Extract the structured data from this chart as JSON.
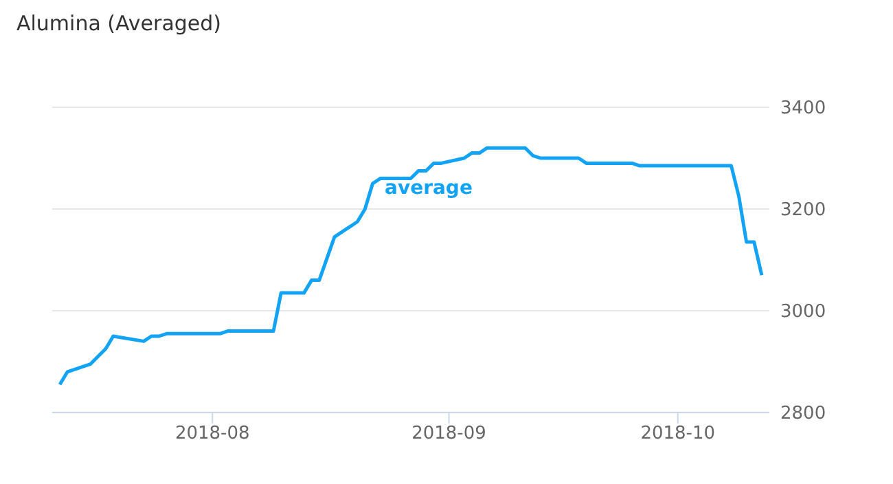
{
  "chart_data": {
    "type": "line",
    "title": "Alumina (Averaged)",
    "x": [
      "2018-07-12",
      "2018-07-13",
      "2018-07-16",
      "2018-07-17",
      "2018-07-18",
      "2018-07-19",
      "2018-07-23",
      "2018-07-24",
      "2018-07-25",
      "2018-07-26",
      "2018-08-02",
      "2018-08-03",
      "2018-08-09",
      "2018-08-10",
      "2018-08-13",
      "2018-08-14",
      "2018-08-15",
      "2018-08-17",
      "2018-08-20",
      "2018-08-21",
      "2018-08-22",
      "2018-08-23",
      "2018-08-27",
      "2018-08-28",
      "2018-08-29",
      "2018-08-30",
      "2018-08-31",
      "2018-09-03",
      "2018-09-04",
      "2018-09-05",
      "2018-09-06",
      "2018-09-11",
      "2018-09-12",
      "2018-09-13",
      "2018-09-18",
      "2018-09-19",
      "2018-09-25",
      "2018-09-26",
      "2018-10-08",
      "2018-10-09",
      "2018-10-10",
      "2018-10-11",
      "2018-10-12"
    ],
    "series": [
      {
        "name": "average",
        "color": "#13a3f4",
        "values": [
          2855,
          2880,
          2895,
          2910,
          2925,
          2950,
          2940,
          2950,
          2950,
          2955,
          2955,
          2960,
          2960,
          3035,
          3035,
          3060,
          3060,
          3145,
          3175,
          3200,
          3250,
          3260,
          3260,
          3275,
          3275,
          3290,
          3290,
          3300,
          3310,
          3310,
          3320,
          3320,
          3305,
          3300,
          3300,
          3290,
          3290,
          3285,
          3285,
          3225,
          3135,
          3135,
          3070
        ]
      }
    ],
    "xlim": [
      "2018-07-11",
      "2018-10-13"
    ],
    "xticks": [
      {
        "value": "2018-08-01",
        "label": "2018-08"
      },
      {
        "value": "2018-09-01",
        "label": "2018-09"
      },
      {
        "value": "2018-10-01",
        "label": "2018-10"
      }
    ],
    "ylim": [
      2800,
      3400
    ],
    "yticks": [
      2800,
      3000,
      3200,
      3400
    ],
    "grid": "y",
    "legend": "top",
    "marker": "none",
    "line_style": "solid"
  }
}
